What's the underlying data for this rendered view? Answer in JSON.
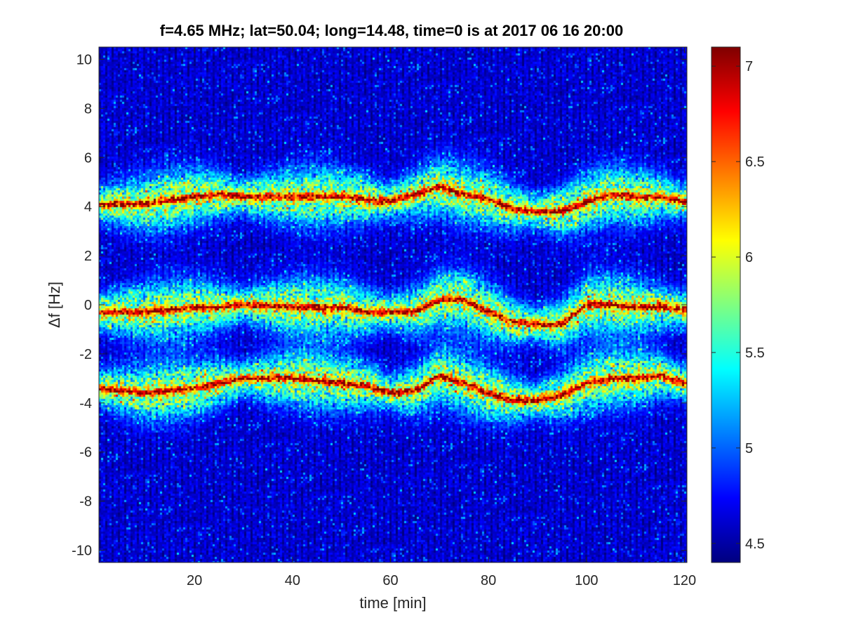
{
  "chart_data": {
    "type": "heatmap",
    "title": "f=4.65 MHz;  lat=50.04; long=14.48, time=0 is at 2017 06 16 20:00",
    "xlabel": "time [min]",
    "ylabel": "Δf [Hz]",
    "xlim": [
      0.5,
      120.5
    ],
    "ylim": [
      -10.5,
      10.5
    ],
    "xticks": [
      20,
      40,
      60,
      80,
      100,
      120
    ],
    "xtick_labels": [
      "20",
      "40",
      "60",
      "80",
      "100",
      "120"
    ],
    "yticks": [
      10,
      8,
      6,
      4,
      2,
      0,
      -2,
      -4,
      -6,
      -8,
      -10
    ],
    "ytick_labels": [
      "10",
      "8",
      "6",
      "4",
      "2",
      "0",
      "-2",
      "-4",
      "-6",
      "-8",
      "-10"
    ],
    "colorbar": {
      "colormap": "jet",
      "limits": [
        4.4,
        7.1
      ],
      "ticks": [
        7,
        6.5,
        6,
        5.5,
        5,
        4.5
      ],
      "tick_labels": [
        "7",
        "6.5",
        "6",
        "5.5",
        "5",
        "4.5"
      ]
    },
    "grid": false,
    "traces": [
      {
        "name": "",
        "time": [
          0,
          10,
          20,
          25,
          30,
          40,
          50,
          55,
          60,
          65,
          70,
          75,
          80,
          85,
          90,
          95,
          100,
          105,
          110,
          115,
          120
        ],
        "df": [
          4.1,
          4.1,
          4.4,
          4.5,
          4.4,
          4.4,
          4.4,
          4.3,
          4.2,
          4.5,
          4.8,
          4.5,
          4.3,
          3.9,
          3.8,
          3.8,
          4.2,
          4.5,
          4.4,
          4.4,
          4.2
        ]
      },
      {
        "name": "",
        "time": [
          0,
          10,
          20,
          25,
          30,
          40,
          50,
          55,
          60,
          65,
          70,
          75,
          80,
          85,
          90,
          95,
          100,
          105,
          110,
          115,
          120
        ],
        "df": [
          -0.3,
          -0.3,
          -0.1,
          -0.1,
          0.0,
          -0.1,
          -0.1,
          -0.3,
          -0.3,
          -0.3,
          0.2,
          0.2,
          -0.3,
          -0.7,
          -0.8,
          -0.8,
          0.0,
          0.0,
          -0.1,
          -0.1,
          -0.2
        ]
      },
      {
        "name": "",
        "time": [
          0,
          10,
          20,
          25,
          30,
          40,
          50,
          55,
          60,
          65,
          70,
          75,
          80,
          85,
          90,
          95,
          100,
          105,
          110,
          115,
          120
        ],
        "df": [
          -3.4,
          -3.6,
          -3.4,
          -3.2,
          -3.0,
          -3.0,
          -3.2,
          -3.3,
          -3.6,
          -3.5,
          -2.9,
          -3.2,
          -3.6,
          -3.9,
          -3.9,
          -3.7,
          -3.2,
          -3.0,
          -3.0,
          -2.9,
          -3.2
        ]
      }
    ]
  }
}
